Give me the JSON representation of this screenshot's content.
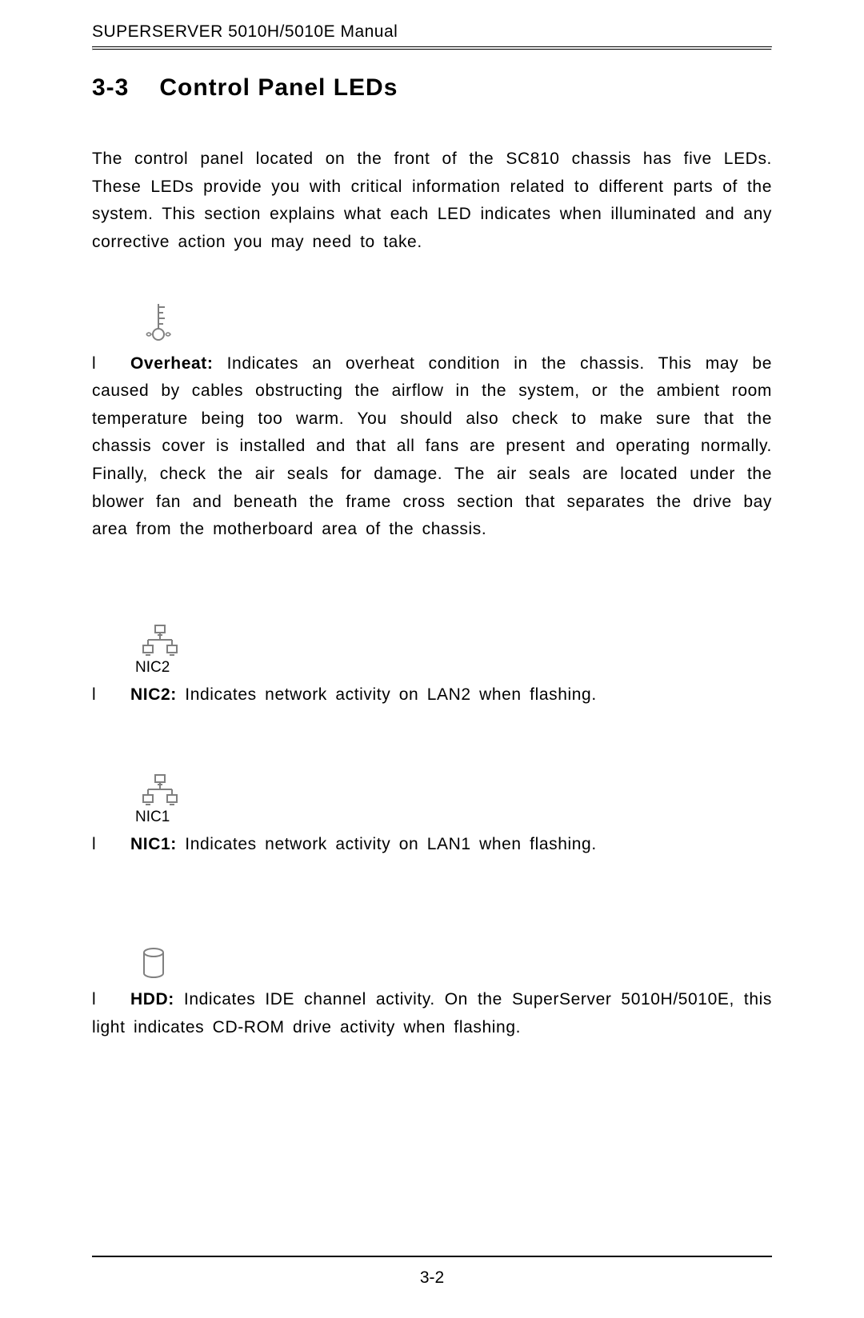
{
  "header": {
    "brand_caps": "SUPERSERVER",
    "brand_model": " 5010H/5010E Manual"
  },
  "section": {
    "number": "3-3",
    "title": "Control Panel LEDs"
  },
  "intro": "The control panel located on the front of the SC810 chassis has five LEDs. These LEDs provide you with critical information related to different parts of the system.  This section explains what each LED indicates when illuminated and any corrective action you may need to take.",
  "items": [
    {
      "icon": "overheat",
      "label": "",
      "bullet": "l",
      "bold": "Overheat:",
      "text": "  Indicates an overheat condition in the chassis.  This may be caused by cables obstructing the airflow in the system, or the ambient room temperature being too warm.  You should also check to make sure that the chassis cover is installed and that all fans are present and operating normally.  Finally, check the air seals for damage.  The air seals are located under the blower fan and beneath the frame cross section that separates the drive bay area from the motherboard area of the chassis."
    },
    {
      "icon": "nic",
      "label": "NIC2",
      "bullet": "l",
      "bold": "NIC2:",
      "text": "  Indicates network activity on LAN2 when flashing."
    },
    {
      "icon": "nic",
      "label": "NIC1",
      "bullet": "l",
      "bold": "NIC1:",
      "text": "  Indicates network activity on LAN1 when flashing."
    },
    {
      "icon": "hdd",
      "label": "",
      "bullet": "l",
      "bold": "HDD:",
      "text": "  Indicates IDE channel activity.  On the SuperServer 5010H/5010E, this light indicates CD-ROM drive activity when flashing."
    }
  ],
  "page_number": "3-2",
  "icon_color": "#808080",
  "text_color": "#000000"
}
